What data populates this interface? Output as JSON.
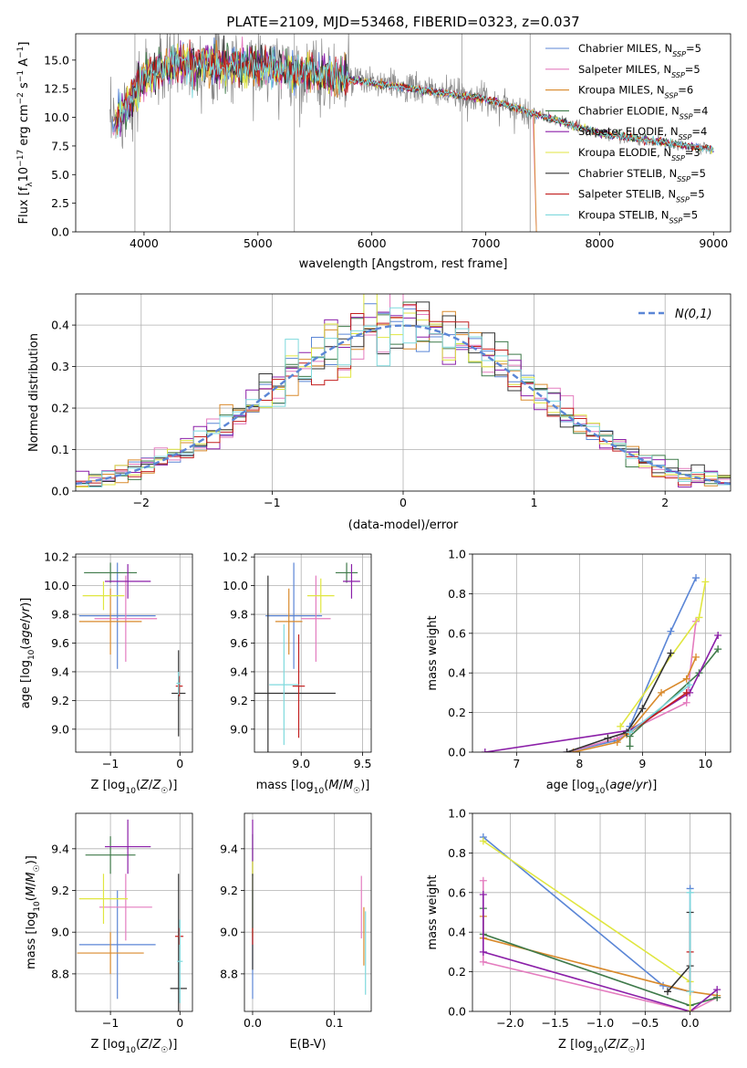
{
  "chart_data": [
    {
      "type": "line",
      "title": "PLATE=2109, MJD=53468, FIBERID=0323, z=0.037",
      "xlabel": "wavelength [Angstrom, rest frame]",
      "ylabel_parts": [
        "Flux [f",
        "λ",
        "10",
        "−17",
        " erg cm",
        "−2",
        " s",
        "−1",
        " A",
        "−1",
        "]"
      ],
      "xlim": [
        3400,
        9150
      ],
      "ylim": [
        0,
        17.3
      ],
      "xticks": [
        4000,
        5000,
        6000,
        7000,
        8000,
        9000
      ],
      "yticks": [
        0.0,
        2.5,
        5.0,
        7.5,
        10.0,
        12.5,
        15.0
      ],
      "grid": false,
      "legend_position": "top-right",
      "legend": [
        {
          "prefix": "Chabrier MILES, N",
          "sub": "SSP",
          "suffix": "=5",
          "color": "#5b86d6"
        },
        {
          "prefix": "Salpeter MILES, N",
          "sub": "SSP",
          "suffix": "=5",
          "color": "#e47cbf"
        },
        {
          "prefix": "Kroupa MILES, N",
          "sub": "SSP",
          "suffix": "=6",
          "color": "#d98a2c"
        },
        {
          "prefix": "Chabrier ELODIE, N",
          "sub": "SSP",
          "suffix": "=4",
          "color": "#3f7a4a"
        },
        {
          "prefix": "Salpeter ELODIE, N",
          "sub": "SSP",
          "suffix": "=4",
          "color": "#8b1fa8"
        },
        {
          "prefix": "Kroupa ELODIE, N",
          "sub": "SSP",
          "suffix": "=3",
          "color": "#e0e640"
        },
        {
          "prefix": "Chabrier STELIB, N",
          "sub": "SSP",
          "suffix": "=5",
          "color": "#333333"
        },
        {
          "prefix": "Salpeter STELIB, N",
          "sub": "SSP",
          "suffix": "=5",
          "color": "#c21f1f"
        },
        {
          "prefix": "Kroupa STELIB, N",
          "sub": "SSP",
          "suffix": "=5",
          "color": "#7fd9dd"
        }
      ],
      "data_color": "#888888",
      "model_range": [
        3700,
        9000
      ],
      "miles_red_end": 7420,
      "sky_line_wavelengths": [
        3920,
        4230,
        5320,
        6790,
        7390
      ]
    },
    {
      "type": "bar",
      "xlabel": "(data-model)/error",
      "ylabel": "Normed distribution",
      "xlim": [
        -2.5,
        2.5
      ],
      "ylim": [
        0,
        0.475
      ],
      "xticks": [
        -2,
        -1,
        0,
        1,
        2
      ],
      "yticks": [
        0.0,
        0.1,
        0.2,
        0.3,
        0.4
      ],
      "grid": true,
      "legend_position": "top-right",
      "normal_curve": {
        "label": "N(0,1)",
        "mean": 0,
        "sigma": 1,
        "color": "#5b86d6"
      },
      "hist_bins": [
        -2.5,
        2.5,
        50
      ],
      "hist_colors": [
        "#5b86d6",
        "#e47cbf",
        "#d98a2c",
        "#3f7a4a",
        "#8b1fa8",
        "#e0e640",
        "#333333",
        "#c21f1f",
        "#7fd9dd"
      ]
    },
    {
      "type": "scatter",
      "xlabel": "Z [log10(Z/Z☉)]",
      "ylabel": "age  [log10(age/yr)]",
      "xlim": [
        -1.5,
        0.18
      ],
      "ylim": [
        8.84,
        10.22
      ],
      "xticks": [
        -1,
        0
      ],
      "yticks": [
        9.0,
        9.2,
        9.4,
        9.6,
        9.8,
        10.0,
        10.2
      ],
      "grid": true,
      "points": [
        {
          "x": -0.9,
          "y": 9.79,
          "xerr": 0.55,
          "yerr": 0.37,
          "color": "#5b86d6"
        },
        {
          "x": -0.78,
          "y": 9.77,
          "xerr": 0.45,
          "yerr": 0.3,
          "color": "#e47cbf"
        },
        {
          "x": -1.0,
          "y": 9.75,
          "xerr": 0.45,
          "yerr": 0.23,
          "color": "#d98a2c"
        },
        {
          "x": -1.0,
          "y": 10.09,
          "xerr": 0.38,
          "yerr": 0.07,
          "color": "#3f7a4a"
        },
        {
          "x": -0.75,
          "y": 10.03,
          "xerr": 0.33,
          "yerr": 0.12,
          "color": "#8b1fa8"
        },
        {
          "x": -1.1,
          "y": 9.93,
          "xerr": 0.3,
          "yerr": 0.1,
          "color": "#e0e640"
        },
        {
          "x": -0.02,
          "y": 9.25,
          "xerr": 0.1,
          "yerr": 0.3,
          "color": "#333333"
        },
        {
          "x": -0.01,
          "y": 9.3,
          "xerr": 0.05,
          "yerr": 0.07,
          "color": "#c21f1f"
        },
        {
          "x": -0.02,
          "y": 9.32,
          "xerr": 0.03,
          "yerr": 0.08,
          "color": "#7fd9dd"
        }
      ]
    },
    {
      "type": "scatter",
      "xlabel": "mass [log10(M/M☉)]",
      "xlim": [
        8.62,
        9.57
      ],
      "ylim": [
        8.84,
        10.22
      ],
      "xticks": [
        9.0,
        9.5
      ],
      "yticks": [
        9.0,
        9.2,
        9.4,
        9.6,
        9.8,
        10.0,
        10.2
      ],
      "grid": true,
      "points": [
        {
          "x": 8.94,
          "y": 9.79,
          "xerr": 0.23,
          "yerr": 0.37,
          "color": "#5b86d6"
        },
        {
          "x": 9.12,
          "y": 9.77,
          "xerr": 0.12,
          "yerr": 0.3,
          "color": "#e47cbf"
        },
        {
          "x": 8.9,
          "y": 9.75,
          "xerr": 0.11,
          "yerr": 0.23,
          "color": "#d98a2c"
        },
        {
          "x": 9.37,
          "y": 10.09,
          "xerr": 0.09,
          "yerr": 0.07,
          "color": "#3f7a4a"
        },
        {
          "x": 9.41,
          "y": 10.03,
          "xerr": 0.07,
          "yerr": 0.12,
          "color": "#8b1fa8"
        },
        {
          "x": 9.16,
          "y": 9.93,
          "xerr": 0.11,
          "yerr": 0.12,
          "color": "#e0e640"
        },
        {
          "x": 8.73,
          "y": 9.25,
          "xerr": 0.55,
          "yerr": 0.82,
          "color": "#333333"
        },
        {
          "x": 8.98,
          "y": 9.3,
          "xerr": 0.05,
          "yerr": 0.36,
          "color": "#c21f1f"
        },
        {
          "x": 8.86,
          "y": 9.31,
          "xerr": 0.12,
          "yerr": 0.42,
          "color": "#7fd9dd"
        }
      ]
    },
    {
      "type": "line",
      "xlabel": "age  [log10(age/yr)]",
      "ylabel": "mass weight",
      "xlim": [
        6.3,
        10.4
      ],
      "ylim": [
        0,
        1.0
      ],
      "xticks": [
        7,
        8,
        9,
        10
      ],
      "yticks": [
        0.0,
        0.2,
        0.4,
        0.6,
        0.8,
        1.0
      ],
      "grid": true,
      "series": [
        {
          "color": "#5b86d6",
          "points": [
            [
              7.8,
              0.0
            ],
            [
              8.6,
              0.06
            ],
            [
              8.75,
              0.09
            ],
            [
              8.8,
              0.13
            ],
            [
              9.45,
              0.61
            ],
            [
              9.85,
              0.88
            ]
          ]
        },
        {
          "color": "#e47cbf",
          "points": [
            [
              7.8,
              0.0
            ],
            [
              8.6,
              0.07
            ],
            [
              8.75,
              0.1
            ],
            [
              8.8,
              0.11
            ],
            [
              9.7,
              0.25
            ],
            [
              9.85,
              0.66
            ]
          ]
        },
        {
          "color": "#d98a2c",
          "points": [
            [
              7.9,
              0.0
            ],
            [
              8.6,
              0.05
            ],
            [
              8.75,
              0.09
            ],
            [
              9.3,
              0.3
            ],
            [
              9.7,
              0.37
            ],
            [
              9.85,
              0.48
            ]
          ]
        },
        {
          "color": "#3f7a4a",
          "points": [
            [
              8.8,
              0.03
            ],
            [
              8.8,
              0.08
            ],
            [
              9.9,
              0.4
            ],
            [
              10.2,
              0.52
            ]
          ]
        },
        {
          "color": "#8b1fa8",
          "points": [
            [
              6.5,
              0.0
            ],
            [
              8.8,
              0.11
            ],
            [
              9.75,
              0.3
            ],
            [
              10.2,
              0.59
            ]
          ]
        },
        {
          "color": "#e0e640",
          "points": [
            [
              8.65,
              0.13
            ],
            [
              9.9,
              0.68
            ],
            [
              10.0,
              0.86
            ]
          ]
        },
        {
          "color": "#333333",
          "points": [
            [
              7.8,
              0.0
            ],
            [
              8.45,
              0.07
            ],
            [
              8.75,
              0.1
            ],
            [
              9.0,
              0.22
            ],
            [
              9.45,
              0.5
            ]
          ]
        },
        {
          "color": "#c21f1f",
          "points": [
            [
              8.8,
              0.1
            ],
            [
              9.7,
              0.3
            ]
          ]
        },
        {
          "color": "#7fd9dd",
          "points": [
            [
              8.8,
              0.1
            ],
            [
              9.75,
              0.34
            ]
          ]
        }
      ]
    },
    {
      "type": "scatter",
      "xlabel": "Z [log10(Z/Z☉)]",
      "ylabel": "mass [log10(M/M☉)]",
      "xlim": [
        -1.5,
        0.18
      ],
      "ylim": [
        8.62,
        9.57
      ],
      "xticks": [
        -1,
        0
      ],
      "yticks": [
        8.8,
        9.0,
        9.2,
        9.4
      ],
      "grid": true,
      "points": [
        {
          "x": -0.9,
          "y": 8.94,
          "xerr": 0.55,
          "yerr": 0.26,
          "color": "#5b86d6"
        },
        {
          "x": -0.78,
          "y": 9.12,
          "xerr": 0.38,
          "yerr": 0.16,
          "color": "#e47cbf"
        },
        {
          "x": -1.0,
          "y": 8.9,
          "xerr": 0.48,
          "yerr": 0.1,
          "color": "#d98a2c"
        },
        {
          "x": -1.0,
          "y": 9.37,
          "xerr": 0.36,
          "yerr": 0.09,
          "color": "#3f7a4a"
        },
        {
          "x": -0.75,
          "y": 9.41,
          "xerr": 0.33,
          "yerr": 0.13,
          "color": "#8b1fa8"
        },
        {
          "x": -1.1,
          "y": 9.16,
          "xerr": 0.35,
          "yerr": 0.12,
          "color": "#e0e640"
        },
        {
          "x": -0.02,
          "y": 8.73,
          "xerr": 0.12,
          "yerr": 0.55,
          "color": "#333333"
        },
        {
          "x": -0.01,
          "y": 8.98,
          "xerr": 0.06,
          "yerr": 0.04,
          "color": "#c21f1f"
        },
        {
          "x": 0.0,
          "y": 8.86,
          "xerr": 0.04,
          "yerr": 0.2,
          "color": "#7fd9dd"
        }
      ]
    },
    {
      "type": "scatter",
      "xlabel": "E(B-V)",
      "xlim": [
        -0.01,
        0.145
      ],
      "ylim": [
        8.62,
        9.57
      ],
      "xticks": [
        0.0,
        0.1
      ],
      "yticks": [
        8.8,
        9.0,
        9.2,
        9.4
      ],
      "grid": true,
      "points": [
        {
          "x": 0.0,
          "y": 8.94,
          "yerr": 0.26,
          "color": "#5b86d6"
        },
        {
          "x": 0.133,
          "y": 9.12,
          "yerr": 0.15,
          "color": "#e47cbf"
        },
        {
          "x": 0.136,
          "y": 8.98,
          "yerr": 0.14,
          "color": "#d98a2c"
        },
        {
          "x": 0.0,
          "y": 9.37,
          "yerr": 0.1,
          "color": "#3f7a4a"
        },
        {
          "x": 0.0,
          "y": 9.41,
          "yerr": 0.13,
          "color": "#8b1fa8"
        },
        {
          "x": 0.0,
          "y": 9.16,
          "yerr": 0.18,
          "color": "#e0e640"
        },
        {
          "x": 0.0,
          "y": 9.05,
          "yerr": 0.23,
          "color": "#333333"
        },
        {
          "x": 0.0,
          "y": 8.98,
          "yerr": 0.04,
          "color": "#c21f1f"
        },
        {
          "x": 0.138,
          "y": 8.9,
          "yerr": 0.2,
          "color": "#7fd9dd"
        }
      ]
    },
    {
      "type": "line",
      "xlabel": "Z [log10(Z/Z☉)]",
      "ylabel": "mass weight",
      "xlim": [
        -2.42,
        0.45
      ],
      "ylim": [
        0,
        1.0
      ],
      "xticks": [
        -2.0,
        -1.5,
        -1.0,
        -0.5,
        0.0
      ],
      "yticks": [
        0.0,
        0.2,
        0.4,
        0.6,
        0.8,
        1.0
      ],
      "grid": true,
      "series": [
        {
          "color": "#5b86d6",
          "points": [
            [
              -2.3,
              0.88
            ],
            [
              -0.3,
              0.13
            ],
            [
              0.0,
              0.1
            ],
            [
              0.0,
              0.62
            ]
          ]
        },
        {
          "color": "#e47cbf",
          "points": [
            [
              -2.3,
              0.66
            ],
            [
              -2.3,
              0.25
            ],
            [
              0.0,
              0.0
            ],
            [
              0.3,
              0.07
            ]
          ]
        },
        {
          "color": "#d98a2c",
          "points": [
            [
              -2.3,
              0.48
            ],
            [
              -2.3,
              0.37
            ],
            [
              0.0,
              0.1
            ],
            [
              0.3,
              0.08
            ]
          ]
        },
        {
          "color": "#3f7a4a",
          "points": [
            [
              -2.3,
              0.52
            ],
            [
              -2.3,
              0.39
            ],
            [
              0.0,
              0.03
            ],
            [
              0.3,
              0.07
            ]
          ]
        },
        {
          "color": "#8b1fa8",
          "points": [
            [
              -2.3,
              0.59
            ],
            [
              -2.3,
              0.3
            ],
            [
              0.0,
              0.0
            ],
            [
              0.3,
              0.11
            ]
          ]
        },
        {
          "color": "#e0e640",
          "points": [
            [
              -2.3,
              0.86
            ],
            [
              0.0,
              0.15
            ],
            [
              0.0,
              0.0
            ]
          ]
        },
        {
          "color": "#333333",
          "points": [
            [
              -0.25,
              0.1
            ],
            [
              0.0,
              0.23
            ],
            [
              0.0,
              0.5
            ]
          ]
        },
        {
          "color": "#c21f1f",
          "points": [
            [
              0.0,
              0.1
            ],
            [
              0.0,
              0.3
            ]
          ]
        },
        {
          "color": "#7fd9dd",
          "points": [
            [
              0.0,
              0.1
            ],
            [
              0.0,
              0.6
            ]
          ]
        }
      ]
    }
  ]
}
